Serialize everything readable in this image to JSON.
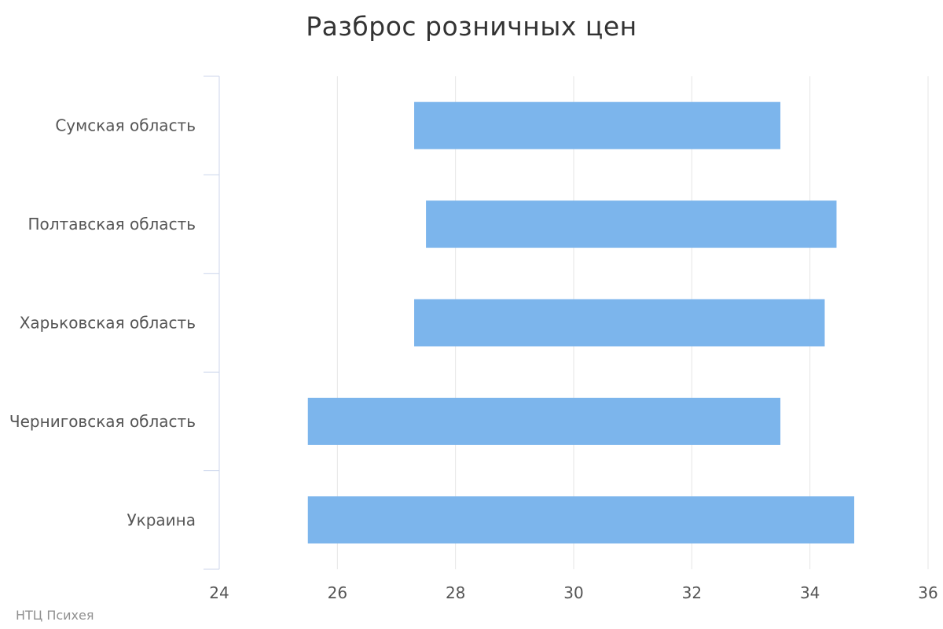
{
  "chart_data": {
    "type": "bar",
    "orientation": "horizontal",
    "variant": "floating-range",
    "title": "Разброс розничных цен",
    "categories": [
      "Сумская область",
      "Полтавская область",
      "Харьковская область",
      "Черниговская область",
      "Украина"
    ],
    "series": [
      {
        "low": [
          27.3,
          27.5,
          27.3,
          25.5,
          25.5
        ],
        "high": [
          33.5,
          34.45,
          34.25,
          33.5,
          34.75
        ]
      }
    ],
    "xlim": [
      24,
      36
    ],
    "xticks": [
      "24",
      "26",
      "28",
      "30",
      "32",
      "34",
      "36"
    ],
    "grid": true,
    "legend": "none",
    "colors": {
      "bar": "#7cb5ec",
      "grid": "#e6e6e6",
      "axis": "#ccd6eb"
    }
  },
  "credits": "НТЦ Психея"
}
